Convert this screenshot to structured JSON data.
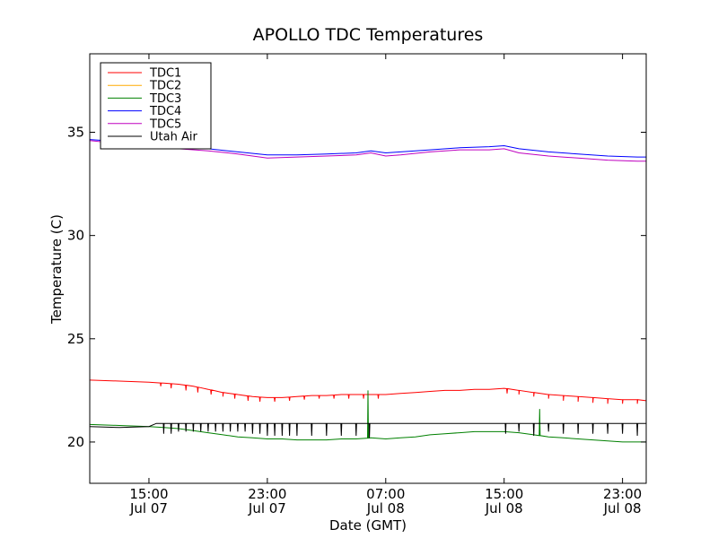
{
  "chart_data": {
    "type": "line",
    "title": "APOLLO TDC Temperatures",
    "xlabel": "Date (GMT)",
    "ylabel": "Temperature (C)",
    "x_unit": "hours since Jul 07 00:00 GMT",
    "xlim": [
      11.0,
      48.6
    ],
    "ylim": [
      18,
      38.8
    ],
    "yticks": [
      20,
      25,
      30,
      35
    ],
    "xticks": [
      {
        "x": 15,
        "line1": "15:00",
        "line2": "Jul 07"
      },
      {
        "x": 23,
        "line1": "23:00",
        "line2": "Jul 07"
      },
      {
        "x": 31,
        "line1": "07:00",
        "line2": "Jul 08"
      },
      {
        "x": 39,
        "line1": "15:00",
        "line2": "Jul 08"
      },
      {
        "x": 47,
        "line1": "23:00",
        "line2": "Jul 08"
      }
    ],
    "legend_position": "top-left",
    "series": [
      {
        "name": "TDC1",
        "color": "#ff0000",
        "points": [
          [
            11,
            23.0
          ],
          [
            13,
            22.95
          ],
          [
            15,
            22.9
          ],
          [
            16,
            22.85
          ],
          [
            17,
            22.8
          ],
          [
            18,
            22.7
          ],
          [
            19,
            22.55
          ],
          [
            20,
            22.4
          ],
          [
            21,
            22.3
          ],
          [
            22,
            22.2
          ],
          [
            23,
            22.15
          ],
          [
            24,
            22.15
          ],
          [
            25,
            22.2
          ],
          [
            26,
            22.25
          ],
          [
            27,
            22.25
          ],
          [
            28,
            22.3
          ],
          [
            29,
            22.3
          ],
          [
            30,
            22.3
          ],
          [
            31,
            22.3
          ],
          [
            32,
            22.35
          ],
          [
            33,
            22.4
          ],
          [
            34,
            22.45
          ],
          [
            35,
            22.5
          ],
          [
            36,
            22.5
          ],
          [
            37,
            22.55
          ],
          [
            38,
            22.55
          ],
          [
            39,
            22.6
          ],
          [
            40,
            22.5
          ],
          [
            41,
            22.4
          ],
          [
            42,
            22.3
          ],
          [
            43,
            22.25
          ],
          [
            44,
            22.2
          ],
          [
            45,
            22.15
          ],
          [
            46,
            22.1
          ],
          [
            47,
            22.05
          ],
          [
            48,
            22.05
          ],
          [
            48.6,
            22.0
          ]
        ],
        "spikes": [
          {
            "x": 15.8,
            "y": 22.7
          },
          {
            "x": 16.5,
            "y": 22.6
          },
          {
            "x": 17.5,
            "y": 22.5
          },
          {
            "x": 18.3,
            "y": 22.4
          },
          {
            "x": 19.2,
            "y": 22.3
          },
          {
            "x": 20.0,
            "y": 22.2
          },
          {
            "x": 20.8,
            "y": 22.1
          },
          {
            "x": 21.7,
            "y": 22.0
          },
          {
            "x": 22.5,
            "y": 21.95
          },
          {
            "x": 23.5,
            "y": 21.95
          },
          {
            "x": 24.5,
            "y": 22.0
          },
          {
            "x": 25.5,
            "y": 22.05
          },
          {
            "x": 26.5,
            "y": 22.1
          },
          {
            "x": 27.5,
            "y": 22.1
          },
          {
            "x": 28.5,
            "y": 22.1
          },
          {
            "x": 29.5,
            "y": 22.1
          },
          {
            "x": 30.5,
            "y": 22.1
          },
          {
            "x": 39.2,
            "y": 22.35
          },
          {
            "x": 40.0,
            "y": 22.3
          },
          {
            "x": 41.0,
            "y": 22.2
          },
          {
            "x": 42.0,
            "y": 22.1
          },
          {
            "x": 43.0,
            "y": 22.0
          },
          {
            "x": 44.0,
            "y": 21.95
          },
          {
            "x": 45.0,
            "y": 21.9
          },
          {
            "x": 46.0,
            "y": 21.85
          },
          {
            "x": 47.0,
            "y": 21.85
          },
          {
            "x": 48.0,
            "y": 21.85
          }
        ]
      },
      {
        "name": "TDC2",
        "color": "#ffaa00",
        "points": []
      },
      {
        "name": "TDC3",
        "color": "#008000",
        "points": [
          [
            11,
            20.85
          ],
          [
            13,
            20.8
          ],
          [
            15,
            20.75
          ],
          [
            16,
            20.7
          ],
          [
            17,
            20.65
          ],
          [
            18,
            20.55
          ],
          [
            19,
            20.45
          ],
          [
            20,
            20.35
          ],
          [
            21,
            20.25
          ],
          [
            22,
            20.2
          ],
          [
            23,
            20.15
          ],
          [
            24,
            20.15
          ],
          [
            25,
            20.1
          ],
          [
            26,
            20.1
          ],
          [
            27,
            20.1
          ],
          [
            28,
            20.15
          ],
          [
            29,
            20.15
          ],
          [
            30,
            20.2
          ],
          [
            31,
            20.15
          ],
          [
            32,
            20.2
          ],
          [
            33,
            20.25
          ],
          [
            34,
            20.35
          ],
          [
            35,
            20.4
          ],
          [
            36,
            20.45
          ],
          [
            37,
            20.5
          ],
          [
            38,
            20.5
          ],
          [
            39,
            20.5
          ],
          [
            40,
            20.45
          ],
          [
            41,
            20.35
          ],
          [
            42,
            20.25
          ],
          [
            43,
            20.2
          ],
          [
            44,
            20.15
          ],
          [
            45,
            20.1
          ],
          [
            46,
            20.05
          ],
          [
            47,
            20.0
          ],
          [
            48,
            20.0
          ],
          [
            48.6,
            20.0
          ]
        ],
        "spikes": [
          {
            "x": 29.8,
            "y": 22.5
          },
          {
            "x": 41.4,
            "y": 21.6
          }
        ]
      },
      {
        "name": "TDC4",
        "color": "#0000ff",
        "points": [
          [
            11,
            34.65
          ],
          [
            13,
            34.55
          ],
          [
            15,
            34.45
          ],
          [
            17,
            34.3
          ],
          [
            19,
            34.2
          ],
          [
            21,
            34.05
          ],
          [
            23,
            33.9
          ],
          [
            25,
            33.9
          ],
          [
            27,
            33.95
          ],
          [
            29,
            34.0
          ],
          [
            30,
            34.1
          ],
          [
            31,
            34.0
          ],
          [
            32,
            34.05
          ],
          [
            34,
            34.15
          ],
          [
            36,
            34.25
          ],
          [
            38,
            34.3
          ],
          [
            39,
            34.35
          ],
          [
            40,
            34.2
          ],
          [
            42,
            34.05
          ],
          [
            44,
            33.95
          ],
          [
            46,
            33.85
          ],
          [
            48,
            33.8
          ],
          [
            48.6,
            33.8
          ]
        ],
        "spikes": []
      },
      {
        "name": "TDC5",
        "color": "#bf00bf",
        "points": [
          [
            11,
            34.6
          ],
          [
            13,
            34.45
          ],
          [
            15,
            34.35
          ],
          [
            17,
            34.2
          ],
          [
            19,
            34.1
          ],
          [
            21,
            33.95
          ],
          [
            23,
            33.75
          ],
          [
            25,
            33.8
          ],
          [
            27,
            33.85
          ],
          [
            29,
            33.9
          ],
          [
            30,
            34.0
          ],
          [
            31,
            33.85
          ],
          [
            32,
            33.9
          ],
          [
            34,
            34.05
          ],
          [
            36,
            34.15
          ],
          [
            38,
            34.15
          ],
          [
            39,
            34.2
          ],
          [
            40,
            34.0
          ],
          [
            42,
            33.85
          ],
          [
            44,
            33.75
          ],
          [
            46,
            33.65
          ],
          [
            48,
            33.6
          ],
          [
            48.6,
            33.6
          ]
        ],
        "spikes": []
      },
      {
        "name": "Utah Air",
        "color": "#000000",
        "points": [
          [
            11,
            20.75
          ],
          [
            13,
            20.7
          ],
          [
            15,
            20.75
          ],
          [
            15.5,
            20.9
          ],
          [
            48.6,
            20.9
          ]
        ],
        "spikes": [
          {
            "x": 16.0,
            "y": 20.4
          },
          {
            "x": 16.5,
            "y": 20.4
          },
          {
            "x": 17.0,
            "y": 20.5
          },
          {
            "x": 17.5,
            "y": 20.5
          },
          {
            "x": 18.0,
            "y": 20.5
          },
          {
            "x": 18.5,
            "y": 20.5
          },
          {
            "x": 19.0,
            "y": 20.5
          },
          {
            "x": 19.5,
            "y": 20.5
          },
          {
            "x": 20.0,
            "y": 20.5
          },
          {
            "x": 20.5,
            "y": 20.5
          },
          {
            "x": 21.0,
            "y": 20.5
          },
          {
            "x": 21.5,
            "y": 20.5
          },
          {
            "x": 22.0,
            "y": 20.4
          },
          {
            "x": 22.5,
            "y": 20.4
          },
          {
            "x": 23.0,
            "y": 20.3
          },
          {
            "x": 23.5,
            "y": 20.3
          },
          {
            "x": 24.0,
            "y": 20.3
          },
          {
            "x": 24.5,
            "y": 20.3
          },
          {
            "x": 25.0,
            "y": 20.3
          },
          {
            "x": 26.0,
            "y": 20.3
          },
          {
            "x": 27.0,
            "y": 20.3
          },
          {
            "x": 28.0,
            "y": 20.3
          },
          {
            "x": 29.0,
            "y": 20.3
          },
          {
            "x": 29.9,
            "y": 20.2
          },
          {
            "x": 39.1,
            "y": 20.4
          },
          {
            "x": 40.0,
            "y": 20.5
          },
          {
            "x": 41.0,
            "y": 20.3
          },
          {
            "x": 42.0,
            "y": 20.5
          },
          {
            "x": 43.0,
            "y": 20.4
          },
          {
            "x": 44.0,
            "y": 20.4
          },
          {
            "x": 45.0,
            "y": 20.4
          },
          {
            "x": 46.0,
            "y": 20.4
          },
          {
            "x": 47.0,
            "y": 20.4
          },
          {
            "x": 48.0,
            "y": 20.3
          }
        ]
      }
    ]
  }
}
